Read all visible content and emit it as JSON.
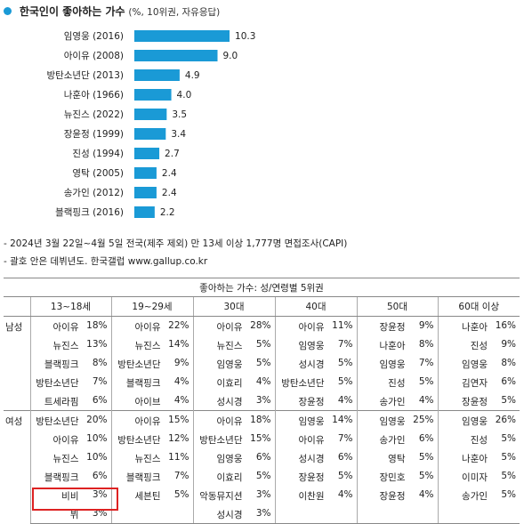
{
  "header": {
    "title": "한국인이 좋아하는 가수",
    "subtitle": "(%, 10위권, 자유응답)"
  },
  "chart_data": {
    "type": "bar",
    "orientation": "horizontal",
    "categories": [
      "임영웅 (2016)",
      "아이유 (2008)",
      "방탄소년단 (2013)",
      "나훈아 (1966)",
      "뉴진스 (2022)",
      "장윤정 (1999)",
      "진성 (1994)",
      "영탁 (2005)",
      "송가인 (2012)",
      "블랙핑크 (2016)"
    ],
    "values": [
      10.3,
      9.0,
      4.9,
      4.0,
      3.5,
      3.4,
      2.7,
      2.4,
      2.4,
      2.2
    ],
    "value_labels": [
      "10.3",
      "9.0",
      "4.9",
      "4.0",
      "3.5",
      "3.4",
      "2.7",
      "2.4",
      "2.4",
      "2.2"
    ],
    "bar_color": "#1a9ad6",
    "grid": false,
    "legend": "none"
  },
  "notes": [
    "- 2024년 3월 22일~4월 5일 전국(제주 제외) 만 13세 이상 1,777명 면접조사(CAPI)",
    "- 괄호 안은 데뷔년도. 한국갤럽 www.gallup.co.kr"
  ],
  "table": {
    "caption": "좋아하는 가수: 성/연령별 5위권",
    "columns": [
      "13~18세",
      "19~29세",
      "30대",
      "40대",
      "50대",
      "60대 이상"
    ],
    "groups": [
      {
        "label": "남성",
        "rows": [
          [
            [
              "아이유",
              "18%"
            ],
            [
              "아이유",
              "22%"
            ],
            [
              "아이유",
              "28%"
            ],
            [
              "아이유",
              "11%"
            ],
            [
              "장윤정",
              "9%"
            ],
            [
              "나훈아",
              "16%"
            ]
          ],
          [
            [
              "뉴진스",
              "13%"
            ],
            [
              "뉴진스",
              "14%"
            ],
            [
              "뉴진스",
              "5%"
            ],
            [
              "임영웅",
              "7%"
            ],
            [
              "나훈아",
              "8%"
            ],
            [
              "진성",
              "9%"
            ]
          ],
          [
            [
              "블랙핑크",
              "8%"
            ],
            [
              "방탄소년단",
              "9%"
            ],
            [
              "임영웅",
              "5%"
            ],
            [
              "성시경",
              "5%"
            ],
            [
              "임영웅",
              "7%"
            ],
            [
              "임영웅",
              "8%"
            ]
          ],
          [
            [
              "방탄소년단",
              "7%"
            ],
            [
              "블랙핑크",
              "4%"
            ],
            [
              "이효리",
              "4%"
            ],
            [
              "방탄소년단",
              "5%"
            ],
            [
              "진성",
              "5%"
            ],
            [
              "김연자",
              "6%"
            ]
          ],
          [
            [
              "트세라핌",
              "6%"
            ],
            [
              "아이브",
              "4%"
            ],
            [
              "성시경",
              "3%"
            ],
            [
              "장윤정",
              "4%"
            ],
            [
              "송가인",
              "4%"
            ],
            [
              "장윤정",
              "5%"
            ]
          ]
        ]
      },
      {
        "label": "여성",
        "rows": [
          [
            [
              "방탄소년단",
              "20%"
            ],
            [
              "아이유",
              "15%"
            ],
            [
              "아이유",
              "18%"
            ],
            [
              "임영웅",
              "14%"
            ],
            [
              "임영웅",
              "25%"
            ],
            [
              "임영웅",
              "26%"
            ]
          ],
          [
            [
              "아이유",
              "10%"
            ],
            [
              "방탄소년단",
              "12%"
            ],
            [
              "방탄소년단",
              "15%"
            ],
            [
              "아이유",
              "7%"
            ],
            [
              "송가인",
              "6%"
            ],
            [
              "진성",
              "5%"
            ]
          ],
          [
            [
              "뉴진스",
              "10%"
            ],
            [
              "뉴진스",
              "11%"
            ],
            [
              "임영웅",
              "6%"
            ],
            [
              "성시경",
              "6%"
            ],
            [
              "영탁",
              "5%"
            ],
            [
              "나훈아",
              "5%"
            ]
          ],
          [
            [
              "블랙핑크",
              "6%"
            ],
            [
              "블랙핑크",
              "7%"
            ],
            [
              "이효리",
              "5%"
            ],
            [
              "장윤정",
              "5%"
            ],
            [
              "장민호",
              "5%"
            ],
            [
              "이미자",
              "5%"
            ]
          ],
          [
            [
              "비비",
              "3%"
            ],
            [
              "세븐틴",
              "5%"
            ],
            [
              "악동뮤지션",
              "3%"
            ],
            [
              "이찬원",
              "4%"
            ],
            [
              "장윤정",
              "4%"
            ],
            [
              "송가인",
              "5%"
            ]
          ],
          [
            [
              "뷔",
              "3%"
            ],
            [
              "",
              ""
            ],
            [
              "성시경",
              "3%"
            ],
            [
              "",
              ""
            ],
            [
              "",
              ""
            ],
            [
              "",
              ""
            ]
          ]
        ]
      }
    ]
  }
}
